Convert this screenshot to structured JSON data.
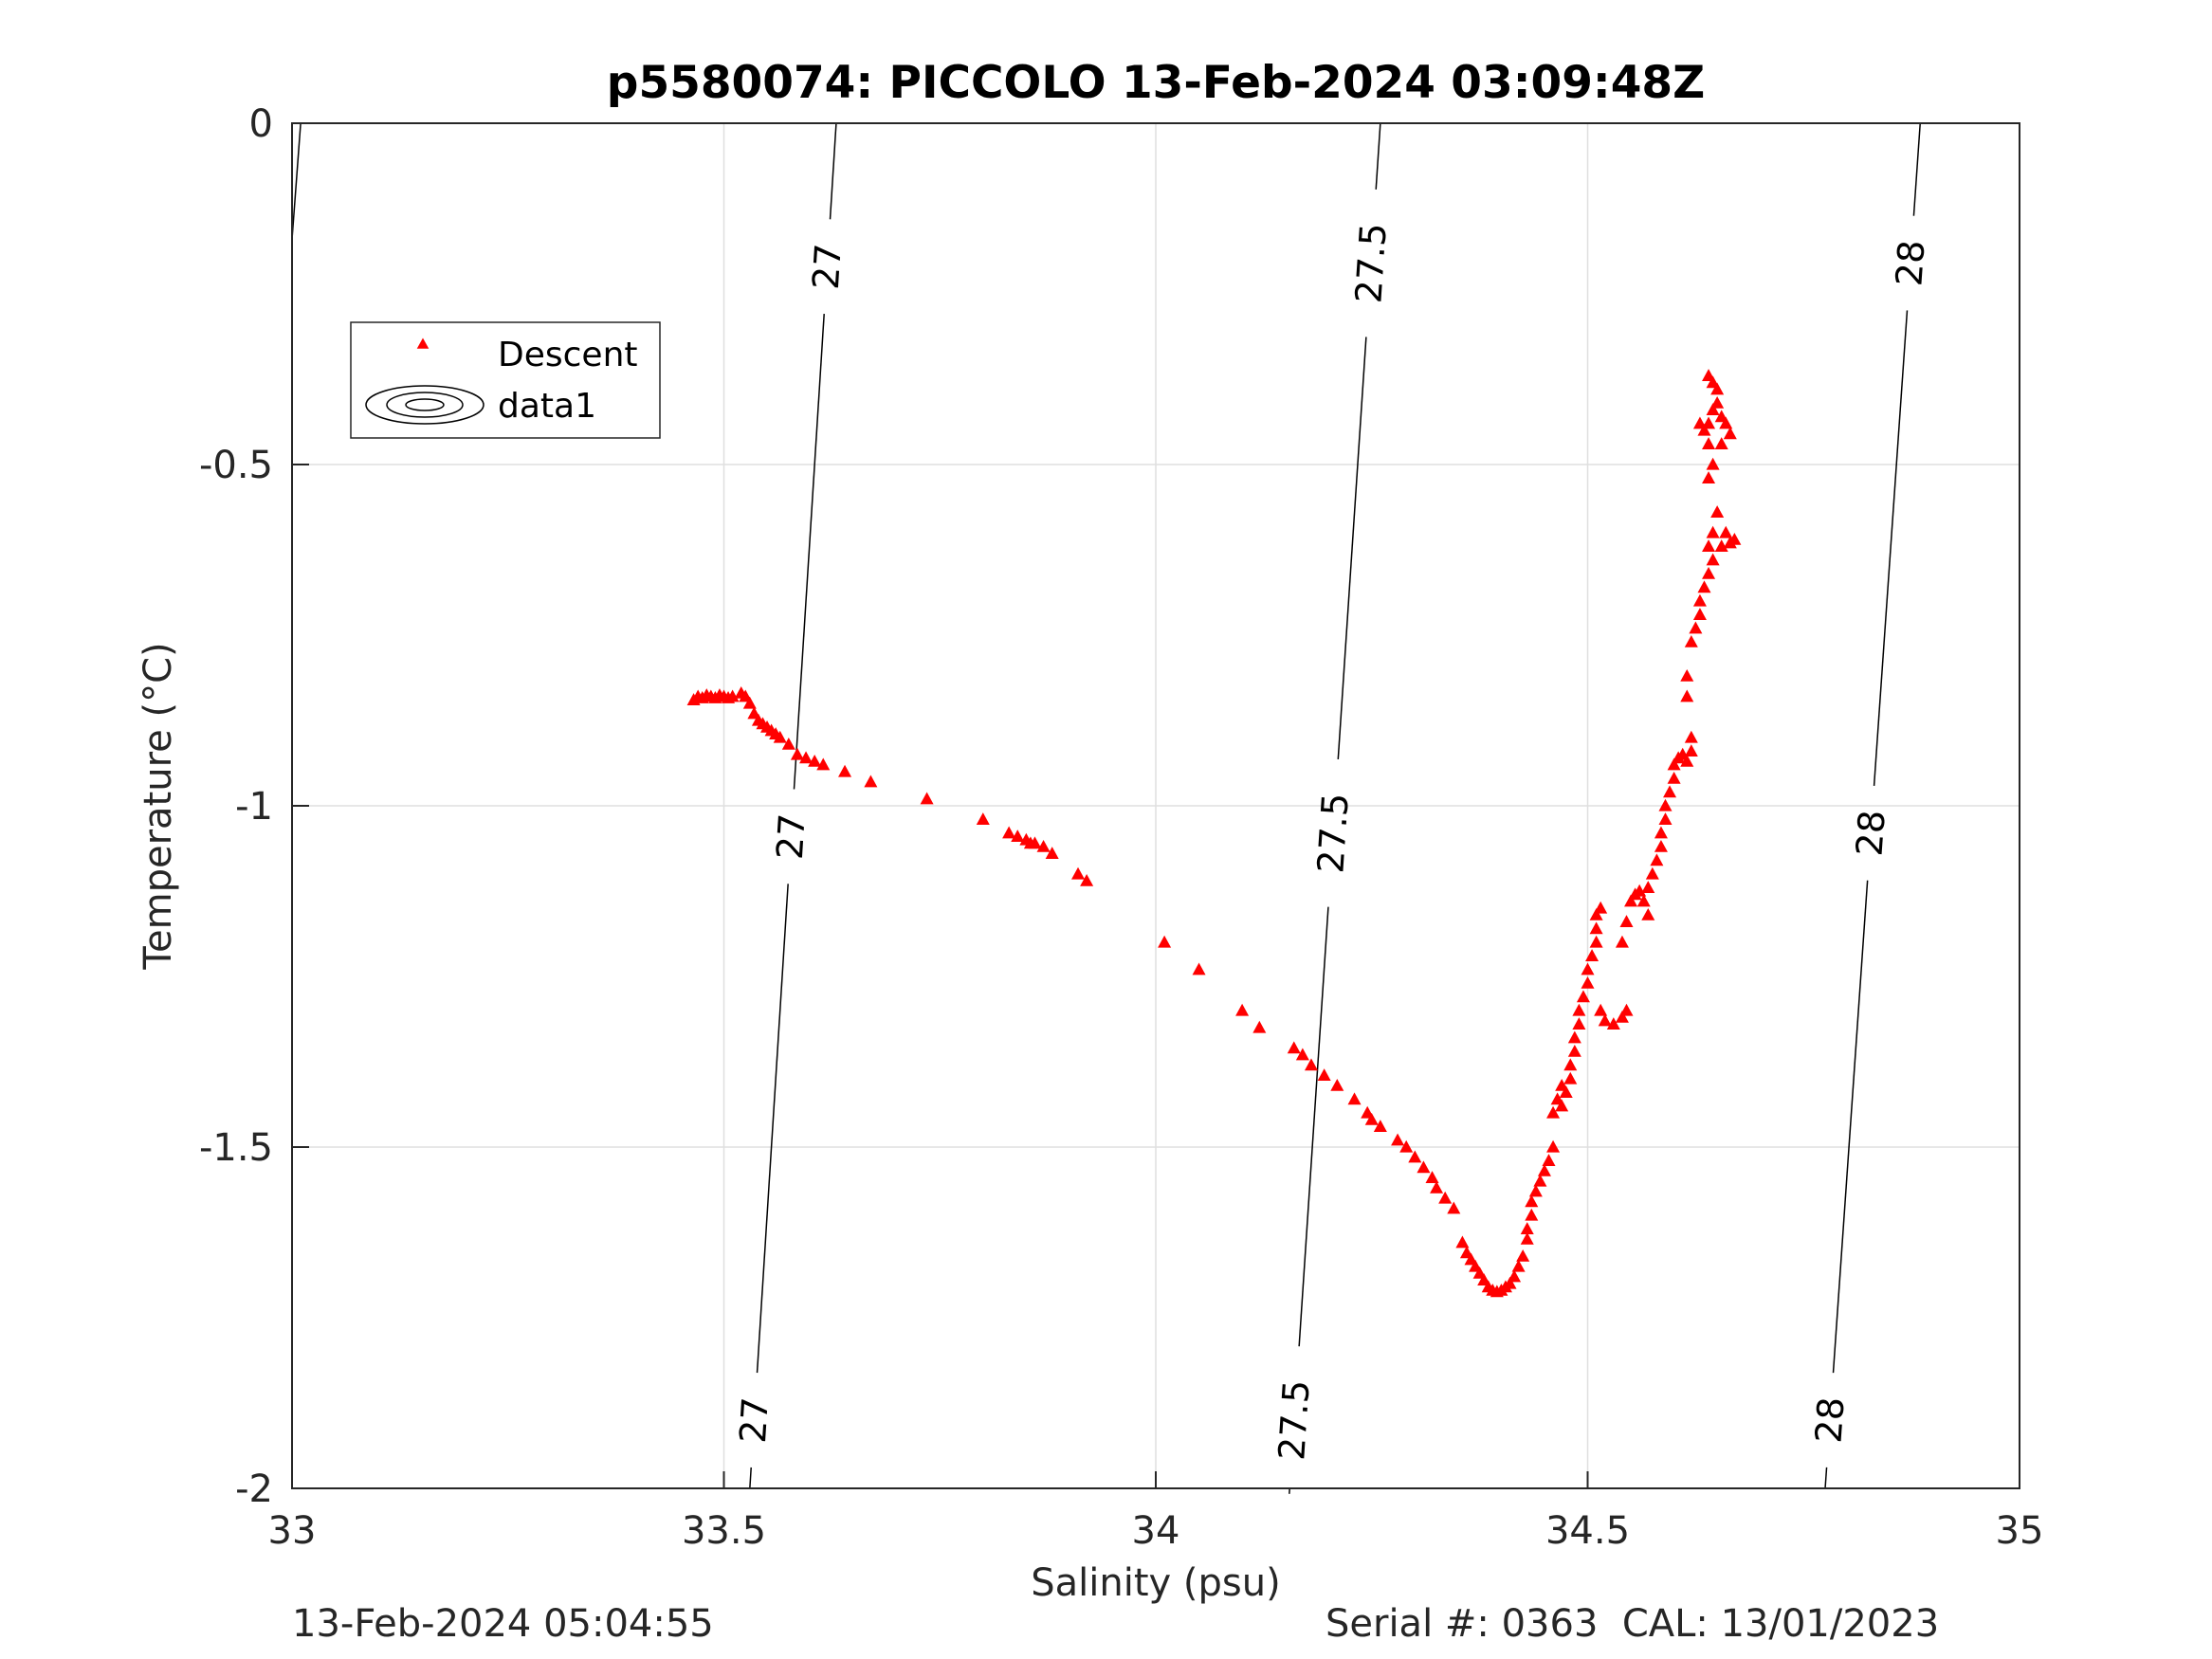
{
  "chart_data": {
    "type": "scatter",
    "title": "p5580074: PICCOLO 13-Feb-2024 03:09:48Z",
    "xlabel": "Salinity (psu)",
    "ylabel": "Temperature (°C)",
    "xlim": [
      33,
      35
    ],
    "ylim": [
      -2,
      0
    ],
    "xticks": [
      "33",
      "33.5",
      "34",
      "34.5",
      "35"
    ],
    "yticks": [
      "0",
      "-0.5",
      "-1",
      "-1.5",
      "-2"
    ],
    "grid": true,
    "legend_placement": "top-left",
    "legend": [
      "Descent",
      "data1"
    ],
    "colors": {
      "descent": "#ff0000",
      "contour": "#000000"
    },
    "series": [
      {
        "name": "Descent",
        "marker": "triangle",
        "points": [
          [
            33.465,
            -0.845
          ],
          [
            33.47,
            -0.84
          ],
          [
            33.475,
            -0.842
          ],
          [
            33.48,
            -0.838
          ],
          [
            33.485,
            -0.84
          ],
          [
            33.49,
            -0.842
          ],
          [
            33.495,
            -0.838
          ],
          [
            33.5,
            -0.84
          ],
          [
            33.505,
            -0.842
          ],
          [
            33.51,
            -0.84
          ],
          [
            33.52,
            -0.835
          ],
          [
            33.525,
            -0.84
          ],
          [
            33.53,
            -0.85
          ],
          [
            33.535,
            -0.865
          ],
          [
            33.54,
            -0.875
          ],
          [
            33.545,
            -0.88
          ],
          [
            33.55,
            -0.885
          ],
          [
            33.555,
            -0.89
          ],
          [
            33.56,
            -0.895
          ],
          [
            33.565,
            -0.9
          ],
          [
            33.575,
            -0.91
          ],
          [
            33.585,
            -0.925
          ],
          [
            33.595,
            -0.93
          ],
          [
            33.605,
            -0.935
          ],
          [
            33.615,
            -0.94
          ],
          [
            33.64,
            -0.95
          ],
          [
            33.67,
            -0.965
          ],
          [
            33.735,
            -0.99
          ],
          [
            33.8,
            -1.02
          ],
          [
            33.83,
            -1.04
          ],
          [
            33.84,
            -1.045
          ],
          [
            33.85,
            -1.05
          ],
          [
            33.855,
            -1.055
          ],
          [
            33.86,
            -1.055
          ],
          [
            33.87,
            -1.06
          ],
          [
            33.88,
            -1.07
          ],
          [
            33.91,
            -1.1
          ],
          [
            33.92,
            -1.11
          ],
          [
            34.01,
            -1.2
          ],
          [
            34.05,
            -1.24
          ],
          [
            34.1,
            -1.3
          ],
          [
            34.12,
            -1.325
          ],
          [
            34.16,
            -1.355
          ],
          [
            34.17,
            -1.365
          ],
          [
            34.18,
            -1.38
          ],
          [
            34.195,
            -1.395
          ],
          [
            34.21,
            -1.41
          ],
          [
            34.23,
            -1.43
          ],
          [
            34.245,
            -1.45
          ],
          [
            34.25,
            -1.46
          ],
          [
            34.26,
            -1.47
          ],
          [
            34.28,
            -1.49
          ],
          [
            34.29,
            -1.5
          ],
          [
            34.3,
            -1.515
          ],
          [
            34.31,
            -1.53
          ],
          [
            34.32,
            -1.545
          ],
          [
            34.325,
            -1.56
          ],
          [
            34.335,
            -1.575
          ],
          [
            34.345,
            -1.59
          ],
          [
            34.355,
            -1.64
          ],
          [
            34.36,
            -1.655
          ],
          [
            34.365,
            -1.665
          ],
          [
            34.37,
            -1.675
          ],
          [
            34.375,
            -1.685
          ],
          [
            34.38,
            -1.695
          ],
          [
            34.385,
            -1.705
          ],
          [
            34.39,
            -1.71
          ],
          [
            34.395,
            -1.712
          ],
          [
            34.4,
            -1.71
          ],
          [
            34.405,
            -1.705
          ],
          [
            34.41,
            -1.7
          ],
          [
            34.415,
            -1.69
          ],
          [
            34.42,
            -1.675
          ],
          [
            34.425,
            -1.66
          ],
          [
            34.43,
            -1.635
          ],
          [
            34.43,
            -1.62
          ],
          [
            34.435,
            -1.6
          ],
          [
            34.435,
            -1.58
          ],
          [
            34.44,
            -1.565
          ],
          [
            34.445,
            -1.55
          ],
          [
            34.45,
            -1.535
          ],
          [
            34.455,
            -1.52
          ],
          [
            34.46,
            -1.5
          ],
          [
            34.46,
            -1.45
          ],
          [
            34.465,
            -1.43
          ],
          [
            34.47,
            -1.44
          ],
          [
            34.475,
            -1.42
          ],
          [
            34.47,
            -1.41
          ],
          [
            34.48,
            -1.4
          ],
          [
            34.48,
            -1.38
          ],
          [
            34.485,
            -1.36
          ],
          [
            34.485,
            -1.34
          ],
          [
            34.49,
            -1.32
          ],
          [
            34.49,
            -1.3
          ],
          [
            34.495,
            -1.28
          ],
          [
            34.5,
            -1.26
          ],
          [
            34.5,
            -1.24
          ],
          [
            34.505,
            -1.22
          ],
          [
            34.51,
            -1.2
          ],
          [
            34.51,
            -1.18
          ],
          [
            34.51,
            -1.16
          ],
          [
            34.515,
            -1.15
          ],
          [
            34.515,
            -1.3
          ],
          [
            34.52,
            -1.315
          ],
          [
            34.53,
            -1.32
          ],
          [
            34.54,
            -1.31
          ],
          [
            34.545,
            -1.3
          ],
          [
            34.54,
            -1.2
          ],
          [
            34.545,
            -1.17
          ],
          [
            34.55,
            -1.14
          ],
          [
            34.555,
            -1.13
          ],
          [
            34.56,
            -1.125
          ],
          [
            34.565,
            -1.14
          ],
          [
            34.57,
            -1.16
          ],
          [
            34.57,
            -1.12
          ],
          [
            34.575,
            -1.1
          ],
          [
            34.58,
            -1.08
          ],
          [
            34.585,
            -1.06
          ],
          [
            34.585,
            -1.04
          ],
          [
            34.59,
            -1.02
          ],
          [
            34.59,
            -1.0
          ],
          [
            34.595,
            -0.98
          ],
          [
            34.6,
            -0.96
          ],
          [
            34.6,
            -0.94
          ],
          [
            34.605,
            -0.93
          ],
          [
            34.61,
            -0.925
          ],
          [
            34.615,
            -0.935
          ],
          [
            34.62,
            -0.92
          ],
          [
            34.62,
            -0.9
          ],
          [
            34.615,
            -0.84
          ],
          [
            34.615,
            -0.81
          ],
          [
            34.62,
            -0.76
          ],
          [
            34.625,
            -0.74
          ],
          [
            34.63,
            -0.72
          ],
          [
            34.63,
            -0.7
          ],
          [
            34.635,
            -0.68
          ],
          [
            34.64,
            -0.66
          ],
          [
            34.645,
            -0.64
          ],
          [
            34.64,
            -0.62
          ],
          [
            34.645,
            -0.6
          ],
          [
            34.65,
            -0.57
          ],
          [
            34.655,
            -0.62
          ],
          [
            34.66,
            -0.6
          ],
          [
            34.665,
            -0.615
          ],
          [
            34.67,
            -0.61
          ],
          [
            34.64,
            -0.52
          ],
          [
            34.645,
            -0.5
          ],
          [
            34.64,
            -0.47
          ],
          [
            34.635,
            -0.45
          ],
          [
            34.64,
            -0.44
          ],
          [
            34.645,
            -0.42
          ],
          [
            34.65,
            -0.41
          ],
          [
            34.655,
            -0.43
          ],
          [
            34.66,
            -0.44
          ],
          [
            34.665,
            -0.455
          ],
          [
            34.655,
            -0.47
          ],
          [
            34.645,
            -0.38
          ],
          [
            34.64,
            -0.37
          ],
          [
            34.65,
            -0.39
          ],
          [
            34.63,
            -0.44
          ]
        ]
      }
    ],
    "isopycnals": [
      {
        "label": "27",
        "points": [
          [
            33.53,
            -2.0
          ],
          [
            33.63,
            0.0
          ]
        ],
        "label_y": [
          -0.21,
          -1.045,
          -1.9
        ]
      },
      {
        "label": "27.5",
        "points": [
          [
            34.155,
            -2.0
          ],
          [
            34.26,
            0.0
          ]
        ],
        "label_y": [
          -0.205,
          -1.04,
          -1.9
        ]
      },
      {
        "label": "28",
        "points": [
          [
            34.775,
            -2.0
          ],
          [
            34.885,
            0.0
          ]
        ],
        "label_y": [
          -0.205,
          -1.04,
          -1.9
        ]
      },
      {
        "label": "",
        "points": [
          [
            33.0,
            -0.17
          ],
          [
            33.01,
            0.0
          ]
        ],
        "label_y": []
      }
    ]
  },
  "footer": {
    "left": "13-Feb-2024 05:04:55",
    "right": "Serial #: 0363  CAL: 13/01/2023"
  }
}
